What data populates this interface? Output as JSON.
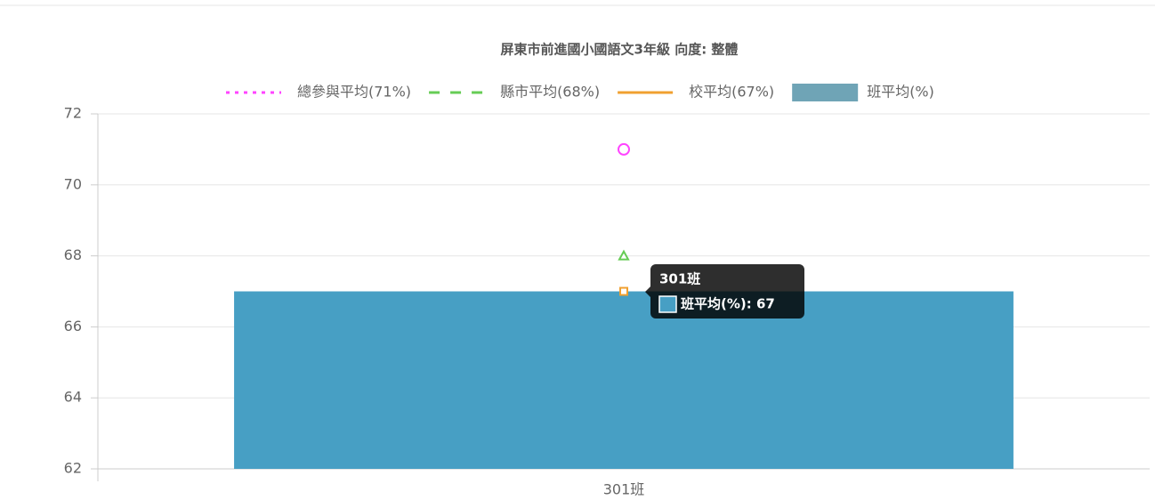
{
  "chart_data": {
    "type": "bar",
    "title": "屏東市前進國小國語文3年級 向度: 整體",
    "categories": [
      "301班"
    ],
    "series": [
      {
        "name": "總參與平均(71%)",
        "type": "line",
        "style": "dotted",
        "point_style": "circle",
        "color": "#ff44ff",
        "values": [
          71
        ]
      },
      {
        "name": "縣市平均(68%)",
        "type": "line",
        "style": "dashed",
        "point_style": "triangle",
        "color": "#66cc55",
        "values": [
          68
        ]
      },
      {
        "name": "校平均(67%)",
        "type": "line",
        "style": "solid",
        "point_style": "rect",
        "color": "#f0a030",
        "values": [
          67
        ]
      },
      {
        "name": "班平均(%)",
        "type": "bar",
        "color": "#479fc4",
        "legend_color": "#6fa4b6",
        "values": [
          67
        ]
      }
    ],
    "ylim": [
      62,
      72
    ],
    "yticks": [
      62,
      64,
      66,
      68,
      70,
      72
    ],
    "grid": true,
    "tooltip": {
      "title": "301班",
      "label": "班平均(%): 67"
    }
  }
}
